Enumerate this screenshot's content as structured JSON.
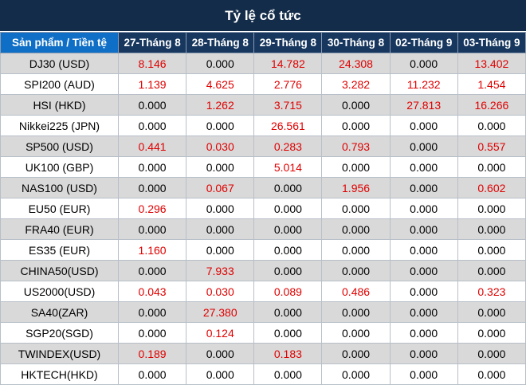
{
  "title": "Tỷ lệ cổ tức",
  "header": {
    "product": "Sản phẩm / Tiền tệ",
    "dates": [
      "27-Tháng 8",
      "28-Tháng 8",
      "29-Tháng 8",
      "30-Tháng 8",
      "02-Tháng 9",
      "03-Tháng 9"
    ]
  },
  "colors": {
    "title_bg": "#132c49",
    "header_bg": "#17375e",
    "first_header_bg": "#0f6fc6",
    "positive": "#e00000",
    "zebra": "#d9d9d9"
  },
  "rows": [
    {
      "product": "DJ30 (USD)",
      "values": [
        "8.146",
        "0.000",
        "14.782",
        "24.308",
        "0.000",
        "13.402"
      ]
    },
    {
      "product": "SPI200 (AUD)",
      "values": [
        "1.139",
        "4.625",
        "2.776",
        "3.282",
        "11.232",
        "1.454"
      ]
    },
    {
      "product": "HSI (HKD)",
      "values": [
        "0.000",
        "1.262",
        "3.715",
        "0.000",
        "27.813",
        "16.266"
      ]
    },
    {
      "product": "Nikkei225 (JPN)",
      "values": [
        "0.000",
        "0.000",
        "26.561",
        "0.000",
        "0.000",
        "0.000"
      ]
    },
    {
      "product": "SP500 (USD)",
      "values": [
        "0.441",
        "0.030",
        "0.283",
        "0.793",
        "0.000",
        "0.557"
      ]
    },
    {
      "product": "UK100 (GBP)",
      "values": [
        "0.000",
        "0.000",
        "5.014",
        "0.000",
        "0.000",
        "0.000"
      ]
    },
    {
      "product": "NAS100 (USD)",
      "values": [
        "0.000",
        "0.067",
        "0.000",
        "1.956",
        "0.000",
        "0.602"
      ]
    },
    {
      "product": "EU50 (EUR)",
      "values": [
        "0.296",
        "0.000",
        "0.000",
        "0.000",
        "0.000",
        "0.000"
      ]
    },
    {
      "product": "FRA40 (EUR)",
      "values": [
        "0.000",
        "0.000",
        "0.000",
        "0.000",
        "0.000",
        "0.000"
      ]
    },
    {
      "product": "ES35 (EUR)",
      "values": [
        "1.160",
        "0.000",
        "0.000",
        "0.000",
        "0.000",
        "0.000"
      ]
    },
    {
      "product": "CHINA50(USD)",
      "values": [
        "0.000",
        "7.933",
        "0.000",
        "0.000",
        "0.000",
        "0.000"
      ]
    },
    {
      "product": "US2000(USD)",
      "values": [
        "0.043",
        "0.030",
        "0.089",
        "0.486",
        "0.000",
        "0.323"
      ]
    },
    {
      "product": "SA40(ZAR)",
      "values": [
        "0.000",
        "27.380",
        "0.000",
        "0.000",
        "0.000",
        "0.000"
      ]
    },
    {
      "product": "SGP20(SGD)",
      "values": [
        "0.000",
        "0.124",
        "0.000",
        "0.000",
        "0.000",
        "0.000"
      ]
    },
    {
      "product": "TWINDEX(USD)",
      "values": [
        "0.189",
        "0.000",
        "0.183",
        "0.000",
        "0.000",
        "0.000"
      ]
    },
    {
      "product": "HKTECH(HKD)",
      "values": [
        "0.000",
        "0.000",
        "0.000",
        "0.000",
        "0.000",
        "0.000"
      ]
    }
  ]
}
